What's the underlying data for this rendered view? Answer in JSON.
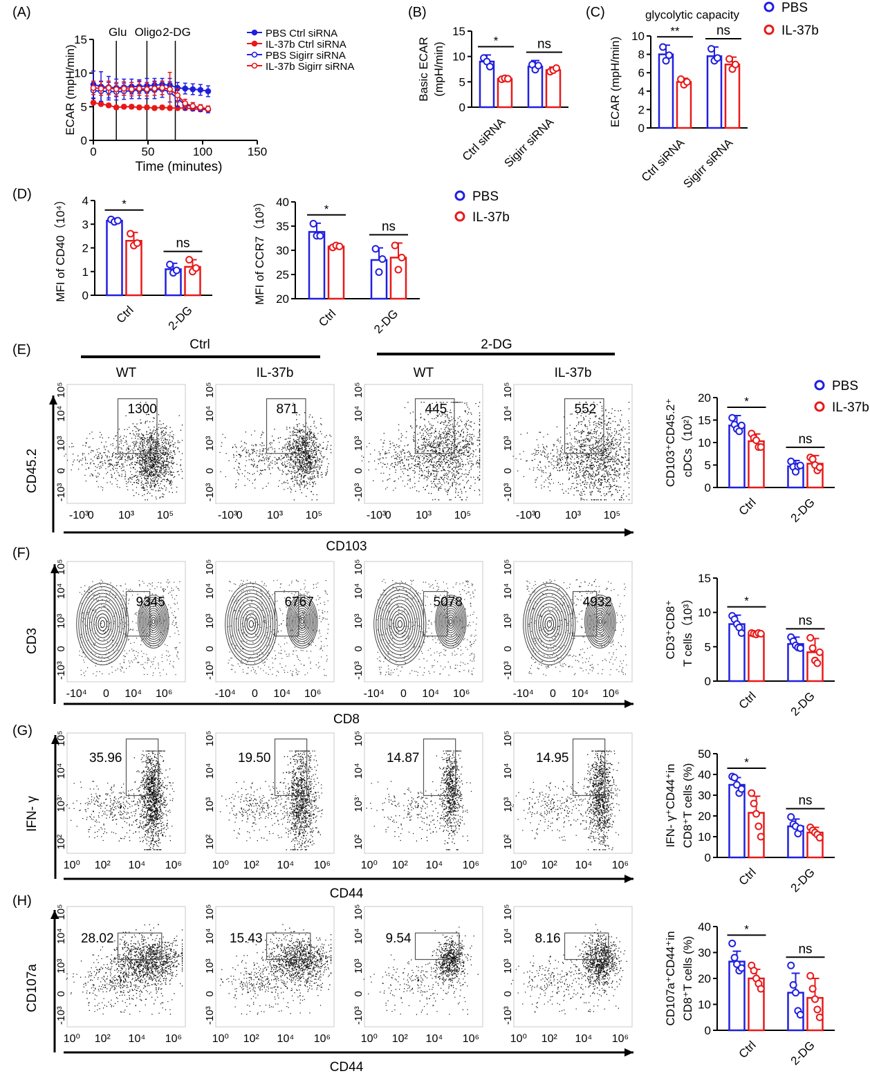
{
  "colors": {
    "pbs": "#1f1fe0",
    "il37b": "#e81818",
    "axis": "#000000"
  },
  "legends": {
    "B": [
      {
        "label": "PBS",
        "color": "pbs"
      },
      {
        "label": "IL-37b",
        "color": "il37b"
      }
    ],
    "C": [
      {
        "label": "PBS",
        "color": "pbs"
      },
      {
        "label": "IL-37b",
        "color": "il37b"
      }
    ],
    "E": [
      {
        "label": "PBS",
        "color": "pbs"
      },
      {
        "label": "IL-37b",
        "color": "il37b"
      }
    ]
  },
  "section_labels": {
    "ctrl_header": "Ctrl",
    "dg_header": "2-DG",
    "flow_titles": [
      "WT",
      "IL-37b",
      "WT",
      "IL-37b"
    ]
  },
  "chart_data": [
    {
      "id": "A",
      "panel_label": "(A)",
      "type": "line",
      "xlabel": "Time (minutes)",
      "ylabel": "ECAR (mpH/min)",
      "xlim": [
        0,
        150
      ],
      "ylim": [
        0,
        15
      ],
      "xticks": [
        0,
        50,
        100,
        150
      ],
      "yticks": [
        0,
        5,
        10,
        15
      ],
      "injections": [
        {
          "x": 21,
          "label": "Glu"
        },
        {
          "x": 49,
          "label": "Oligo"
        },
        {
          "x": 75,
          "label": "2-DG"
        }
      ],
      "x": [
        0,
        7,
        14,
        21,
        28,
        35,
        42,
        49,
        56,
        63,
        70,
        77,
        84,
        91,
        98,
        105
      ],
      "series": [
        {
          "name": "PBS Ctrl siRNA",
          "color": "pbs",
          "filled": true,
          "values": [
            8.3,
            8.0,
            7.9,
            7.8,
            7.9,
            8.0,
            8.0,
            8.1,
            8.2,
            8.3,
            8.2,
            7.8,
            7.7,
            7.6,
            7.5,
            7.3
          ],
          "errors": [
            2.0,
            2.2,
            1.6,
            1.3,
            1.2,
            1.1,
            1.0,
            1.1,
            1.0,
            0.9,
            1.0,
            0.8,
            0.8,
            0.8,
            0.8,
            0.8
          ]
        },
        {
          "name": "IL-37b Ctrl siRNA",
          "color": "il37b",
          "filled": true,
          "values": [
            5.6,
            5.4,
            5.2,
            4.9,
            5.0,
            5.0,
            4.9,
            4.9,
            4.8,
            4.9,
            4.8,
            4.8,
            4.8,
            4.7,
            4.6,
            4.6
          ],
          "errors": [
            0.3,
            0.3,
            0.3,
            0.3,
            0.3,
            0.3,
            0.3,
            0.3,
            0.3,
            0.3,
            0.3,
            0.3,
            0.3,
            0.3,
            0.3,
            0.3
          ]
        },
        {
          "name": "PBS Sigirr siRNA",
          "color": "pbs",
          "filled": false,
          "values": [
            7.4,
            7.3,
            7.3,
            7.2,
            7.3,
            7.4,
            7.5,
            7.4,
            7.5,
            7.6,
            7.2,
            6.2,
            5.3,
            5.0,
            4.8,
            4.6
          ],
          "errors": [
            1.2,
            1.5,
            1.3,
            1.2,
            1.2,
            1.2,
            1.3,
            1.2,
            1.3,
            1.2,
            1.5,
            1.2,
            0.8,
            0.6,
            0.5,
            0.5
          ]
        },
        {
          "name": "IL-37b Sigirr siRNA",
          "color": "il37b",
          "filled": false,
          "values": [
            7.8,
            7.7,
            7.8,
            7.6,
            7.7,
            7.6,
            7.7,
            7.6,
            7.7,
            7.8,
            7.6,
            6.7,
            5.5,
            5.1,
            4.9,
            4.7
          ],
          "errors": [
            1.0,
            1.0,
            1.0,
            1.0,
            1.0,
            1.0,
            1.0,
            1.0,
            1.0,
            1.0,
            2.5,
            1.0,
            0.6,
            0.5,
            0.4,
            0.4
          ]
        }
      ]
    },
    {
      "id": "B",
      "panel_label": "(B)",
      "type": "bar",
      "title": "",
      "ylabel_lines": [
        "Basic ECAR",
        "(mpH/min)"
      ],
      "ylim": [
        0,
        15
      ],
      "yticks": [
        0,
        5,
        10,
        15
      ],
      "categories": [
        "Ctrl siRNA",
        "Sigirr siRNA"
      ],
      "series": [
        {
          "name": "PBS",
          "color": "pbs",
          "values": [
            9.0,
            8.0
          ],
          "errors": [
            1.3,
            1.2
          ],
          "points": [
            [
              9.7,
              9.0,
              8.0
            ],
            [
              8.4,
              7.4,
              8.2
            ]
          ]
        },
        {
          "name": "IL-37b",
          "color": "il37b",
          "values": [
            5.6,
            7.3
          ],
          "errors": [
            0.3,
            0.6
          ],
          "points": [
            [
              5.5,
              5.7,
              5.6
            ],
            [
              7.0,
              7.3,
              7.7
            ]
          ]
        }
      ],
      "significance": [
        "*",
        "ns"
      ]
    },
    {
      "id": "C",
      "panel_label": "(C)",
      "type": "bar",
      "title": "glycolytic  capacity",
      "ylabel_lines": [
        "ECAR (mpH/min)"
      ],
      "ylim": [
        0,
        10
      ],
      "yticks": [
        0,
        2,
        4,
        6,
        8,
        10
      ],
      "categories": [
        "Ctrl siRNA",
        "Sigirr siRNA"
      ],
      "series": [
        {
          "name": "PBS",
          "color": "pbs",
          "values": [
            8.0,
            7.8
          ],
          "errors": [
            1.0,
            1.0
          ],
          "points": [
            [
              8.8,
              7.3,
              7.9
            ],
            [
              8.6,
              7.3,
              7.6
            ]
          ]
        },
        {
          "name": "IL-37b",
          "color": "il37b",
          "values": [
            5.0,
            6.9
          ],
          "errors": [
            0.4,
            0.8
          ],
          "points": [
            [
              5.3,
              4.7,
              5.0
            ],
            [
              7.5,
              6.4,
              6.9
            ]
          ]
        }
      ],
      "significance": [
        "**",
        "ns"
      ]
    },
    {
      "id": "D1",
      "panel_label": "(D)",
      "type": "bar",
      "ylabel_lines": [
        "MFI of  CD40（10⁴）"
      ],
      "ylim": [
        0,
        4
      ],
      "yticks": [
        0,
        1,
        2,
        3,
        4
      ],
      "categories": [
        "Ctrl",
        "2-DG"
      ],
      "series": [
        {
          "name": "PBS",
          "color": "pbs",
          "values": [
            3.15,
            1.1
          ],
          "errors": [
            0.1,
            0.25
          ],
          "points": [
            [
              3.2,
              3.1,
              3.15
            ],
            [
              1.3,
              0.95,
              1.05
            ]
          ]
        },
        {
          "name": "IL-37b",
          "color": "il37b",
          "values": [
            2.3,
            1.2
          ],
          "errors": [
            0.35,
            0.3
          ],
          "points": [
            [
              2.6,
              2.1,
              2.2
            ],
            [
              1.5,
              1.0,
              1.15
            ]
          ]
        }
      ],
      "significance": [
        "*",
        "ns"
      ]
    },
    {
      "id": "D2",
      "panel_label": "",
      "type": "bar",
      "ylabel_lines": [
        "MFI of  CCR7（10³）"
      ],
      "ylim": [
        20,
        40
      ],
      "yticks": [
        20,
        25,
        30,
        35,
        40
      ],
      "categories": [
        "Ctrl",
        "2-DG"
      ],
      "series": [
        {
          "name": "PBS",
          "color": "pbs",
          "values": [
            33.8,
            28.0
          ],
          "errors": [
            1.8,
            2.5
          ],
          "points": [
            [
              35.5,
              33.0,
              33.0
            ],
            [
              30.3,
              25.5,
              28.2
            ]
          ]
        },
        {
          "name": "IL-37b",
          "color": "il37b",
          "values": [
            30.8,
            28.5
          ],
          "errors": [
            0.3,
            3.0
          ],
          "points": [
            [
              30.6,
              31.0,
              30.8
            ],
            [
              31.0,
              26.0,
              28.5
            ]
          ]
        }
      ],
      "significance": [
        "*",
        "ns"
      ]
    },
    {
      "id": "E",
      "panel_label": "(E)",
      "type": "bar",
      "ylabel_lines": [
        "CD103⁺CD45.2⁺",
        "cDCs（10²）"
      ],
      "ylim": [
        0,
        20
      ],
      "yticks": [
        0,
        5,
        10,
        15,
        20
      ],
      "categories": [
        "Ctrl",
        "2-DG"
      ],
      "series": [
        {
          "name": "PBS",
          "color": "pbs",
          "values": [
            13.8,
            4.7
          ],
          "errors": [
            2.2,
            1.3
          ],
          "points": [
            [
              15.5,
              14.0,
              13.0,
              12.5,
              13.8
            ],
            [
              5.8,
              4.6,
              3.5,
              4.7,
              4.9
            ]
          ]
        },
        {
          "name": "IL-37b",
          "color": "il37b",
          "values": [
            10.3,
            5.3
          ],
          "errors": [
            1.6,
            1.8
          ],
          "points": [
            [
              12.0,
              11.0,
              10.5,
              9.0,
              9.0
            ],
            [
              6.7,
              6.3,
              5.0,
              3.8,
              4.5
            ]
          ]
        }
      ],
      "significance": [
        "*",
        "ns"
      ]
    },
    {
      "id": "F",
      "panel_label": "(F)",
      "type": "bar",
      "ylabel_lines": [
        "CD3⁺CD8⁺",
        "T cells（10³）"
      ],
      "ylim": [
        0,
        15
      ],
      "yticks": [
        0,
        5,
        10,
        15
      ],
      "categories": [
        "Ctrl",
        "2-DG"
      ],
      "series": [
        {
          "name": "PBS",
          "color": "pbs",
          "values": [
            8.3,
            5.4
          ],
          "errors": [
            1.3,
            1.0
          ],
          "points": [
            [
              9.5,
              9.0,
              8.3,
              7.8,
              7.0
            ],
            [
              6.4,
              5.8,
              5.2,
              4.9,
              4.8
            ]
          ]
        },
        {
          "name": "IL-37b",
          "color": "il37b",
          "values": [
            6.9,
            4.2
          ],
          "errors": [
            0.2,
            2.0
          ],
          "points": [
            [
              7.0,
              6.9,
              6.8,
              7.0,
              6.9
            ],
            [
              6.3,
              4.8,
              3.0,
              2.6,
              4.2
            ]
          ]
        }
      ],
      "significance": [
        "*",
        "ns"
      ]
    },
    {
      "id": "G",
      "panel_label": "(G)",
      "type": "bar",
      "ylabel_lines": [
        "IFN- γ⁺CD44⁺in",
        "CD8⁺T cells (%)"
      ],
      "ylim": [
        0,
        50
      ],
      "yticks": [
        0,
        10,
        20,
        30,
        40,
        50
      ],
      "categories": [
        "Ctrl",
        "2-DG"
      ],
      "series": [
        {
          "name": "PBS",
          "color": "pbs",
          "values": [
            35.0,
            15.0
          ],
          "errors": [
            3.5,
            3.5
          ],
          "points": [
            [
              39.0,
              38.5,
              35.0,
              31.0,
              33.0
            ],
            [
              19.5,
              16.0,
              15.0,
              11.5,
              14.0
            ]
          ]
        },
        {
          "name": "IL-37b",
          "color": "il37b",
          "values": [
            21.5,
            12.0
          ],
          "errors": [
            8.0,
            2.5
          ],
          "points": [
            [
              31.0,
              26.0,
              21.0,
              15.0,
              10.0
            ],
            [
              14.5,
              13.0,
              12.0,
              11.0,
              9.5
            ]
          ]
        }
      ],
      "significance": [
        "*",
        "ns"
      ]
    },
    {
      "id": "H",
      "panel_label": "(H)",
      "type": "bar",
      "ylabel_lines": [
        "CD107a⁺CD44⁺in",
        "CD8⁺T cells (%)"
      ],
      "ylim": [
        0,
        40
      ],
      "yticks": [
        0,
        10,
        20,
        30,
        40
      ],
      "categories": [
        "Ctrl",
        "2-DG"
      ],
      "series": [
        {
          "name": "PBS",
          "color": "pbs",
          "values": [
            26.5,
            14.5
          ],
          "errors": [
            4.0,
            7.5
          ],
          "points": [
            [
              33.5,
              28.0,
              25.5,
              23.0,
              24.0
            ],
            [
              25.0,
              17.5,
              14.5,
              7.5,
              6.0
            ]
          ]
        },
        {
          "name": "IL-37b",
          "color": "il37b",
          "values": [
            20.0,
            12.5
          ],
          "errors": [
            3.5,
            7.5
          ],
          "points": [
            [
              25.0,
              23.0,
              20.0,
              18.0,
              16.0
            ],
            [
              21.0,
              16.0,
              12.0,
              8.0,
              5.0
            ]
          ]
        }
      ],
      "significance": [
        "*",
        "ns"
      ]
    }
  ],
  "flow_rows": [
    {
      "id": "E",
      "style": "dots",
      "ylabel": "CD45.2",
      "xlabel": "CD103",
      "yticks": [
        "10⁵",
        "10⁴",
        "10³",
        "0",
        "-10³"
      ],
      "xticks": [
        "-10³",
        "0",
        "10³",
        "10⁵"
      ],
      "gate_values": [
        "1300",
        "871",
        "445",
        "552"
      ]
    },
    {
      "id": "F",
      "style": "contour",
      "ylabel": "CD3",
      "xlabel": "CD8",
      "yticks": [
        "10⁵",
        "10⁴",
        "10³",
        "0",
        "-10³"
      ],
      "xticks": [
        "-10⁴",
        "0",
        "10⁴",
        "10⁶"
      ],
      "gate_values": [
        "9345",
        "6767",
        "5078",
        "4932"
      ]
    },
    {
      "id": "G",
      "style": "dots",
      "ylabel": "IFN- γ",
      "xlabel": "CD44",
      "yticks": [
        "10⁵",
        "10⁴",
        "10³",
        "10²"
      ],
      "xticks": [
        "10⁰",
        "10²",
        "10⁴",
        "10⁶"
      ],
      "gate_values": [
        "35.96",
        "19.50",
        "14.87",
        "14.95"
      ]
    },
    {
      "id": "H",
      "style": "dots",
      "ylabel": "CD107a",
      "xlabel": "CD44",
      "yticks": [
        "10⁵",
        "10⁴",
        "10³",
        "0",
        "-10³"
      ],
      "xticks": [
        "10⁰",
        "10²",
        "10⁴",
        "10⁶"
      ],
      "gate_values": [
        "28.02",
        "15.43",
        "9.54",
        "8.16"
      ]
    }
  ]
}
